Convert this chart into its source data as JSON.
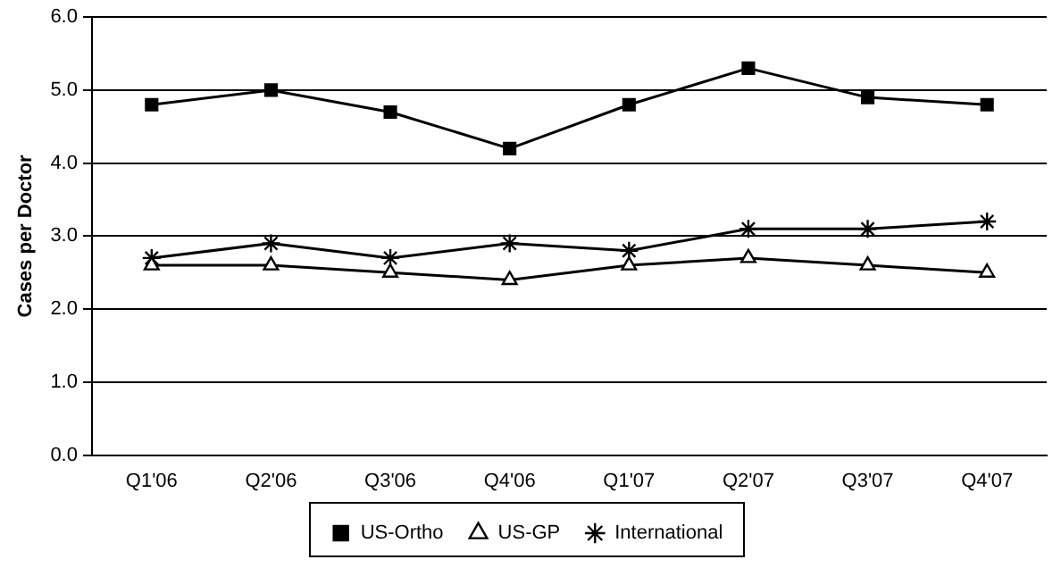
{
  "chart_data": {
    "type": "line",
    "ylabel": "Cases per Doctor",
    "categories": [
      "Q1'06",
      "Q2'06",
      "Q3'06",
      "Q4'06",
      "Q1'07",
      "Q2'07",
      "Q3'07",
      "Q4'07"
    ],
    "series": [
      {
        "name": "US-Ortho",
        "color": "#000000",
        "marker": "square",
        "values": [
          4.8,
          5.0,
          4.7,
          4.2,
          4.8,
          5.3,
          4.9,
          4.8
        ]
      },
      {
        "name": "US-GP",
        "color": "#000000",
        "marker": "triangle",
        "values": [
          2.6,
          2.6,
          2.5,
          2.4,
          2.6,
          2.7,
          2.6,
          2.5
        ]
      },
      {
        "name": "International",
        "color": "#000000",
        "marker": "cross",
        "values": [
          2.7,
          2.9,
          2.7,
          2.9,
          2.8,
          3.1,
          3.1,
          3.2
        ]
      }
    ],
    "ylim": [
      0,
      6
    ],
    "yticks": [
      {
        "value": 0,
        "label": "0.0"
      },
      {
        "value": 1,
        "label": "1.0"
      },
      {
        "value": 2,
        "label": "2.0"
      },
      {
        "value": 3,
        "label": "3.0"
      },
      {
        "value": 4,
        "label": "4.0"
      },
      {
        "value": 5,
        "label": "5.0"
      },
      {
        "value": 6,
        "label": "6.0"
      }
    ],
    "grid": "y",
    "legend": "bottom",
    "line_style": "solid"
  }
}
